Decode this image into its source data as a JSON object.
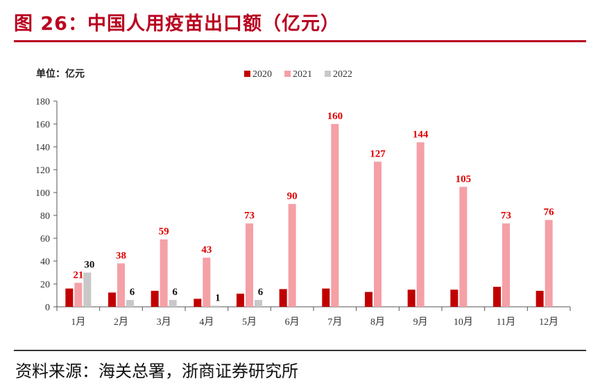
{
  "figure": {
    "title": "图 26：中国人用疫苗出口额（亿元）",
    "source": "资料来源：海关总署，浙商证券研究所"
  },
  "chart_data": {
    "type": "bar",
    "unit_label": "单位：亿元",
    "categories": [
      "1月",
      "2月",
      "3月",
      "4月",
      "5月",
      "6月",
      "7月",
      "8月",
      "9月",
      "10月",
      "11月",
      "12月"
    ],
    "series": [
      {
        "name": "2020",
        "color": "#c00000",
        "values": [
          16,
          12.5,
          14,
          7,
          11.5,
          15.5,
          16,
          13,
          15,
          15,
          17.5,
          14
        ],
        "labels": false
      },
      {
        "name": "2021",
        "color": "#f4a0a6",
        "values": [
          21,
          38,
          59,
          43,
          73,
          90,
          160,
          127,
          144,
          105,
          73,
          76
        ],
        "labels": true,
        "label_color": "#e00000"
      },
      {
        "name": "2022",
        "color": "#c8c8c8",
        "values": [
          30,
          6,
          6,
          1,
          6,
          null,
          null,
          null,
          null,
          null,
          null,
          null
        ],
        "labels": true,
        "label_color": "#111111"
      }
    ],
    "ylim": [
      0,
      180
    ],
    "yticks": [
      "0",
      "20",
      "40",
      "60",
      "80",
      "100",
      "120",
      "140",
      "160",
      "180"
    ],
    "legend": "top",
    "grid": false
  }
}
